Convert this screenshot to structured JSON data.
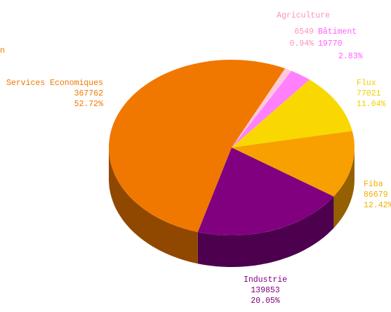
{
  "chart_data": {
    "type": "pie3d",
    "annotations": [
      "n"
    ],
    "categories": [
      "Services Economiques",
      "Agriculture",
      "Bâtiment",
      "Flux",
      "Fiba",
      "Industrie"
    ],
    "values": [
      367762,
      6549,
      19770,
      77021,
      86679,
      139853
    ],
    "value_labels": [
      "52.72%",
      "0.94%",
      "2.83%",
      "11.04%",
      "12.42%",
      "20.05%"
    ],
    "colors": [
      "#f07800",
      "#ffc8d8",
      "#ff80ff",
      "#f8d800",
      "#f8a000",
      "#800080"
    ],
    "label_colors": [
      "#f07800",
      "#ff90c0",
      "#ff60ff",
      "#f0d000",
      "#f0b000",
      "#800080"
    ]
  }
}
